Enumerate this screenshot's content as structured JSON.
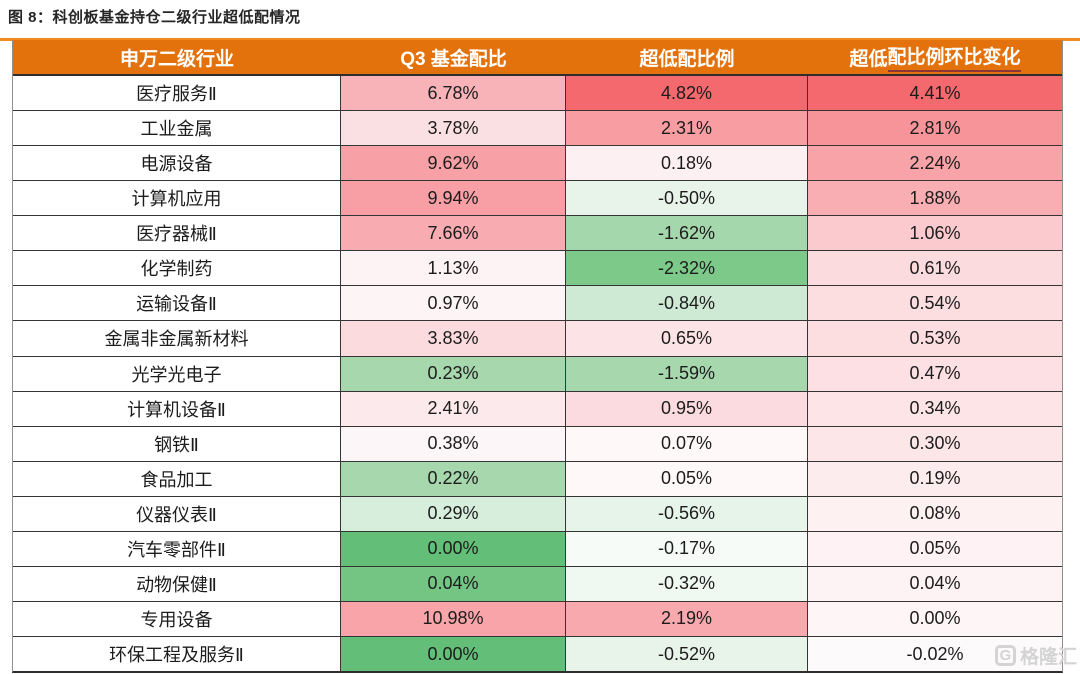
{
  "figure": {
    "title": "图 8：科创板基金持仓二级行业超低配情况"
  },
  "header": {
    "col1": "申万二级行业",
    "col2": "Q3 基金配比",
    "col3": "超低配比例",
    "col4_plain": "超低",
    "col4_underlined": "配比例环比变化"
  },
  "colors": {
    "header_bg": "#E4720C",
    "header_text": "#FFFFFF",
    "accent_line": "#F08B1E",
    "header_underline": "#8C3636",
    "grid_border": "#353535",
    "outer_border": "#8F8F8F",
    "strong_red": "#F4696D",
    "strong_green": "#63BE77",
    "watermark_gray": "#D2D2D2"
  },
  "watermark": {
    "logo": "G",
    "text": "格隆汇"
  },
  "table": {
    "rows": [
      {
        "industry": "医疗服务Ⅱ",
        "cells": [
          {
            "v": "6.78%",
            "bg": "#F7B3B8"
          },
          {
            "v": "4.82%",
            "bg": "#F4696D"
          },
          {
            "v": "4.41%",
            "bg": "#F4696D"
          }
        ]
      },
      {
        "industry": "工业金属",
        "cells": [
          {
            "v": "3.78%",
            "bg": "#FBE0E3"
          },
          {
            "v": "2.31%",
            "bg": "#F89EA3"
          },
          {
            "v": "2.81%",
            "bg": "#F79499"
          }
        ]
      },
      {
        "industry": "电源设备",
        "cells": [
          {
            "v": "9.62%",
            "bg": "#F7A1A6"
          },
          {
            "v": "0.18%",
            "bg": "#FDF0F2"
          },
          {
            "v": "2.24%",
            "bg": "#F8A3A8"
          }
        ]
      },
      {
        "industry": "计算机应用",
        "cells": [
          {
            "v": "9.94%",
            "bg": "#F79FA4"
          },
          {
            "v": "-0.50%",
            "bg": "#E8F4EA"
          },
          {
            "v": "1.88%",
            "bg": "#F9AEB3"
          }
        ]
      },
      {
        "industry": "医疗器械Ⅱ",
        "cells": [
          {
            "v": "7.66%",
            "bg": "#F8ACB1"
          },
          {
            "v": "-1.62%",
            "bg": "#A5D7AC"
          },
          {
            "v": "1.06%",
            "bg": "#FBCACE"
          }
        ]
      },
      {
        "industry": "化学制药",
        "cells": [
          {
            "v": "1.13%",
            "bg": "#FDF2F4"
          },
          {
            "v": "-2.32%",
            "bg": "#7CC98A"
          },
          {
            "v": "0.61%",
            "bg": "#FCDBDE"
          }
        ]
      },
      {
        "industry": "运输设备Ⅱ",
        "cells": [
          {
            "v": "0.97%",
            "bg": "#FDF4F6"
          },
          {
            "v": "-0.84%",
            "bg": "#CFEAD4"
          },
          {
            "v": "0.54%",
            "bg": "#FCDDE0"
          }
        ]
      },
      {
        "industry": "金属非金属新材料",
        "cells": [
          {
            "v": "3.83%",
            "bg": "#FBDBDE"
          },
          {
            "v": "0.65%",
            "bg": "#FCE3E6"
          },
          {
            "v": "0.53%",
            "bg": "#FCDDE0"
          }
        ]
      },
      {
        "industry": "光学光电子",
        "cells": [
          {
            "v": "0.23%",
            "bg": "#A6D7AD"
          },
          {
            "v": "-1.59%",
            "bg": "#A6D7AD"
          },
          {
            "v": "0.47%",
            "bg": "#FCE0E3"
          }
        ]
      },
      {
        "industry": "计算机设备Ⅱ",
        "cells": [
          {
            "v": "2.41%",
            "bg": "#FCE9EB"
          },
          {
            "v": "0.95%",
            "bg": "#FBDBDF"
          },
          {
            "v": "0.34%",
            "bg": "#FDE5E7"
          }
        ]
      },
      {
        "industry": "钢铁Ⅱ",
        "cells": [
          {
            "v": "0.38%",
            "bg": "#FCF6F8"
          },
          {
            "v": "0.07%",
            "bg": "#FEF8F9"
          },
          {
            "v": "0.30%",
            "bg": "#FDE6E8"
          }
        ]
      },
      {
        "industry": "食品加工",
        "cells": [
          {
            "v": "0.22%",
            "bg": "#A6D7AD"
          },
          {
            "v": "0.05%",
            "bg": "#FEF8F9"
          },
          {
            "v": "0.19%",
            "bg": "#FDECEE"
          }
        ]
      },
      {
        "industry": "仪器仪表Ⅱ",
        "cells": [
          {
            "v": "0.29%",
            "bg": "#D8EEDC"
          },
          {
            "v": "-0.56%",
            "bg": "#E7F4EA"
          },
          {
            "v": "0.08%",
            "bg": "#FEF1F2"
          }
        ]
      },
      {
        "industry": "汽车零部件Ⅱ",
        "cells": [
          {
            "v": "0.00%",
            "bg": "#63BE77"
          },
          {
            "v": "-0.17%",
            "bg": "#F7FBF8"
          },
          {
            "v": "0.05%",
            "bg": "#FEF2F4"
          }
        ]
      },
      {
        "industry": "动物保健Ⅱ",
        "cells": [
          {
            "v": "0.04%",
            "bg": "#74C584"
          },
          {
            "v": "-0.32%",
            "bg": "#F0F8F2"
          },
          {
            "v": "0.04%",
            "bg": "#FEF3F4"
          }
        ]
      },
      {
        "industry": "专用设备",
        "cells": [
          {
            "v": "10.98%",
            "bg": "#F8A4A9"
          },
          {
            "v": "2.19%",
            "bg": "#F8A9AE"
          },
          {
            "v": "0.00%",
            "bg": "#FEF5F6"
          }
        ]
      },
      {
        "industry": "环保工程及服务Ⅱ",
        "cells": [
          {
            "v": "0.00%",
            "bg": "#63BE77"
          },
          {
            "v": "-0.52%",
            "bg": "#E8F4EA"
          },
          {
            "v": "-0.02%",
            "bg": "#FDFAFB"
          }
        ]
      }
    ]
  },
  "chart_data": {
    "type": "table",
    "title": "图 8：科创板基金持仓二级行业超低配情况",
    "columns": [
      "申万二级行业",
      "Q3 基金配比",
      "超低配比例",
      "超低配比例环比变化"
    ],
    "categories": [
      "医疗服务Ⅱ",
      "工业金属",
      "电源设备",
      "计算机应用",
      "医疗器械Ⅱ",
      "化学制药",
      "运输设备Ⅱ",
      "金属非金属新材料",
      "光学光电子",
      "计算机设备Ⅱ",
      "钢铁Ⅱ",
      "食品加工",
      "仪器仪表Ⅱ",
      "汽车零部件Ⅱ",
      "动物保健Ⅱ",
      "专用设备",
      "环保工程及服务Ⅱ"
    ],
    "series": [
      {
        "name": "Q3 基金配比",
        "values": [
          6.78,
          3.78,
          9.62,
          9.94,
          7.66,
          1.13,
          0.97,
          3.83,
          0.23,
          2.41,
          0.38,
          0.22,
          0.29,
          0.0,
          0.04,
          10.98,
          0.0
        ]
      },
      {
        "name": "超低配比例",
        "values": [
          4.82,
          2.31,
          0.18,
          -0.5,
          -1.62,
          -2.32,
          -0.84,
          0.65,
          -1.59,
          0.95,
          0.07,
          0.05,
          -0.56,
          -0.17,
          -0.32,
          2.19,
          -0.52
        ]
      },
      {
        "name": "超低配比例环比变化",
        "values": [
          4.41,
          2.81,
          2.24,
          1.88,
          1.06,
          0.61,
          0.54,
          0.53,
          0.47,
          0.34,
          0.3,
          0.19,
          0.08,
          0.05,
          0.04,
          0.0,
          -0.02
        ]
      }
    ],
    "unit": "%",
    "heatmap": "red = high / overweight, green = low / underweight, white = neutral",
    "legend_position": "none",
    "grid": true
  }
}
